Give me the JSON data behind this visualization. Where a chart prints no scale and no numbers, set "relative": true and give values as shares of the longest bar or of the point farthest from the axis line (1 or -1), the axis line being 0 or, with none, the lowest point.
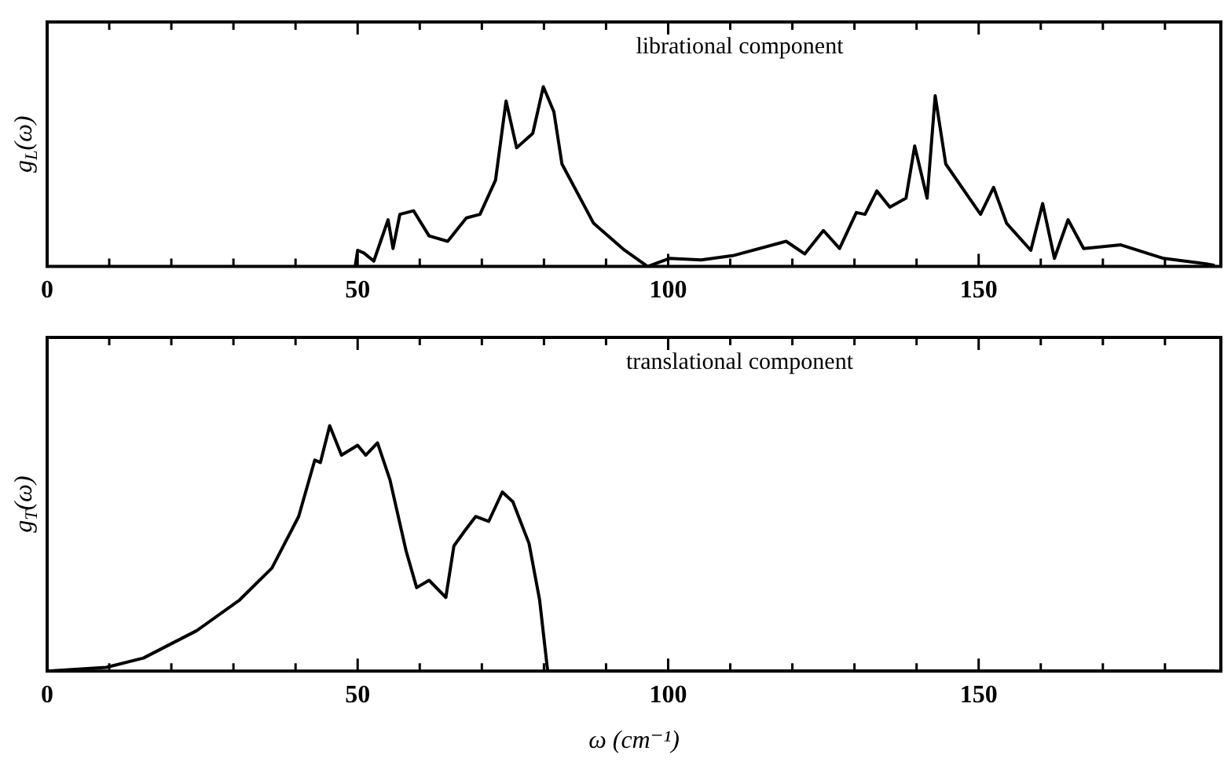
{
  "chart_data": [
    {
      "type": "line",
      "relative": true,
      "ylabel": "g$_{L}$(ω)",
      "annotations": [
        "librational component"
      ],
      "color": "#000000",
      "marker": "none",
      "line_style": "solid",
      "grid": false,
      "legend": false,
      "xlim": [
        0,
        189
      ],
      "xticks": [
        0,
        {
          "value": 10,
          "label": null
        },
        {
          "value": 20,
          "label": null
        },
        {
          "value": 30,
          "label": null
        },
        {
          "value": 40,
          "label": null
        },
        50,
        {
          "value": 60,
          "label": null
        },
        {
          "value": 70,
          "label": null
        },
        {
          "value": 80,
          "label": null
        },
        {
          "value": 90,
          "label": null
        },
        100,
        {
          "value": 110,
          "label": null
        },
        {
          "value": 120,
          "label": null
        },
        {
          "value": 130,
          "label": null
        },
        {
          "value": 140,
          "label": null
        },
        150,
        {
          "value": 160,
          "label": null
        },
        {
          "value": 170,
          "label": null
        },
        {
          "value": 180,
          "label": null
        }
      ],
      "x": [
        49.6,
        50,
        51,
        52.6,
        54.9,
        55.7,
        56.8,
        59,
        61.5,
        64.5,
        67.5,
        69.7,
        72.2,
        73.9,
        75.6,
        78.2,
        79.9,
        81.6,
        82.9,
        88,
        91,
        93,
        96.7,
        100.2,
        105.3,
        110.4,
        119,
        122,
        125,
        127.6,
        130.3,
        131.7,
        133.6,
        135.7,
        138.3,
        139.7,
        141.7,
        143,
        144.7,
        147.7,
        150.3,
        152.4,
        154.5,
        158.4,
        160.3,
        162.2,
        164.4,
        166.9,
        172.9,
        179.8,
        186.6,
        188
      ],
      "values": [
        0,
        0.09,
        0.075,
        0.03,
        0.26,
        0.1,
        0.29,
        0.31,
        0.17,
        0.14,
        0.27,
        0.29,
        0.48,
        0.92,
        0.66,
        0.74,
        1,
        0.86,
        0.57,
        0.24,
        0.15,
        0.09,
        0,
        0.045,
        0.036,
        0.06,
        0.14,
        0.07,
        0.2,
        0.1,
        0.3,
        0.29,
        0.42,
        0.33,
        0.38,
        0.67,
        0.38,
        0.95,
        0.57,
        0.42,
        0.29,
        0.44,
        0.24,
        0.09,
        0.35,
        0.045,
        0.26,
        0.1,
        0.12,
        0.045,
        0.015,
        0.006
      ]
    },
    {
      "type": "line",
      "relative": true,
      "ylabel": "g$_{T}$(ω)",
      "xlabel": "ω (cm⁻¹)",
      "annotations": [
        "translational component"
      ],
      "color": "#000000",
      "marker": "none",
      "line_style": "solid",
      "grid": false,
      "legend": false,
      "xlim": [
        0,
        189
      ],
      "xticks": [
        0,
        {
          "value": 10,
          "label": null
        },
        {
          "value": 20,
          "label": null
        },
        {
          "value": 30,
          "label": null
        },
        {
          "value": 40,
          "label": null
        },
        50,
        {
          "value": 60,
          "label": null
        },
        {
          "value": 70,
          "label": null
        },
        {
          "value": 80,
          "label": null
        },
        {
          "value": 90,
          "label": null
        },
        100,
        {
          "value": 110,
          "label": null
        },
        {
          "value": 120,
          "label": null
        },
        {
          "value": 130,
          "label": null
        },
        {
          "value": 140,
          "label": null
        },
        150,
        {
          "value": 160,
          "label": null
        },
        {
          "value": 170,
          "label": null
        },
        {
          "value": 180,
          "label": null
        }
      ],
      "x": [
        0,
        9.5,
        15.5,
        24.1,
        31,
        36.2,
        40.5,
        43.1,
        44,
        45.5,
        47.4,
        50,
        51.3,
        53.2,
        55.2,
        57.8,
        59.5,
        61.5,
        64.2,
        65.5,
        67.2,
        69,
        71.1,
        73.3,
        75,
        77.6,
        79.3,
        80.6,
        188
      ],
      "values": [
        0,
        0.015,
        0.053,
        0.165,
        0.29,
        0.42,
        0.63,
        0.86,
        0.85,
        1,
        0.88,
        0.92,
        0.88,
        0.93,
        0.78,
        0.49,
        0.34,
        0.37,
        0.3,
        0.51,
        0.57,
        0.63,
        0.61,
        0.73,
        0.69,
        0.52,
        0.29,
        0,
        0
      ]
    }
  ]
}
